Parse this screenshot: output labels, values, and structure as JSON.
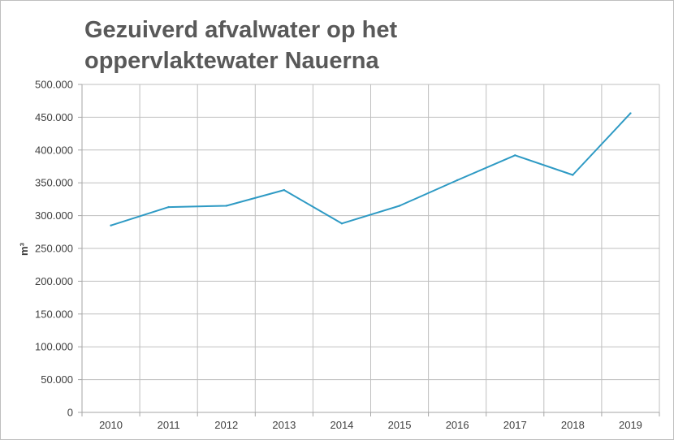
{
  "chart_data": {
    "type": "line",
    "title_line1": "Gezuiverd afvalwater op het",
    "title_line2": "oppervlaktewater Nauerna",
    "xlabel": "",
    "ylabel": "m³",
    "categories": [
      "2010",
      "2011",
      "2012",
      "2013",
      "2014",
      "2015",
      "2016",
      "2017",
      "2018",
      "2019"
    ],
    "series": [
      {
        "values": [
          285000,
          313000,
          315000,
          339000,
          288000,
          315000,
          354000,
          392000,
          362000,
          456000
        ]
      }
    ],
    "ylim": [
      0,
      500000
    ],
    "yticks": [
      0,
      50000,
      100000,
      150000,
      200000,
      250000,
      300000,
      350000,
      400000,
      450000,
      500000
    ],
    "ytick_labels": [
      "0",
      "50.000",
      "100.000",
      "150.000",
      "200.000",
      "250.000",
      "300.000",
      "350.000",
      "400.000",
      "450.000",
      "500.000"
    ],
    "grid": true,
    "legend": "none",
    "line_color": "#2e9ac4",
    "grid_color": "#bfbfbf"
  }
}
